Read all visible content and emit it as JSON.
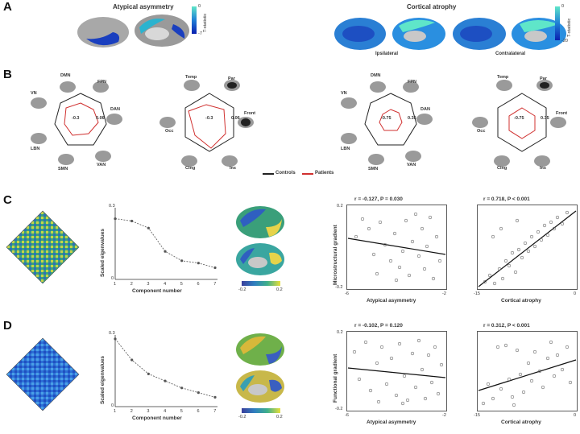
{
  "panels": {
    "a": "A",
    "b": "B",
    "c": "C",
    "d": "D"
  },
  "panelA": {
    "left_title": "Atypical asymmetry",
    "right_title": "Cortical atrophy",
    "left_cbar": {
      "label": "T-statistic",
      "max": "0",
      "min": "-7"
    },
    "right_cbar": {
      "label": "T-statistic",
      "max": "0",
      "min": "-20"
    },
    "ipsilateral": "Ipsilateral",
    "contralateral": "Contralateral"
  },
  "panelB": {
    "radar1": {
      "labels": [
        "DMN",
        "FPN",
        "DAN",
        "VAN",
        "SMN",
        "LBN",
        "VN"
      ],
      "min": "-0.3",
      "max": "0.06"
    },
    "radar2": {
      "labels": [
        "Temp",
        "Par",
        "Front",
        "Ins",
        "Cing",
        "Occ"
      ],
      "min": "-0.3",
      "max": "0.06"
    },
    "radar3": {
      "labels": [
        "DMN",
        "FPN",
        "DAN",
        "VAN",
        "SMN",
        "LBN",
        "VN"
      ],
      "min": "-0.75",
      "max": "0.35"
    },
    "radar4": {
      "labels": [
        "Temp",
        "Par",
        "Front",
        "Ins",
        "Cing",
        "Occ"
      ],
      "min": "-0.75",
      "max": "0.35"
    },
    "legend": {
      "controls": "Controls",
      "patients": "Patients",
      "controls_color": "#222222",
      "patients_color": "#d0302f"
    }
  },
  "panelC": {
    "ylabel": "Scaled eigenvalues",
    "xlabel": "Component number",
    "ymax": "0.3",
    "ymin": "0",
    "xticks": [
      "1",
      "2",
      "3",
      "4",
      "5",
      "6",
      "7"
    ],
    "cbar_min": "-0.2",
    "cbar_max": "0.2",
    "scatter1": {
      "title": "r = -0.127, P = 0.030",
      "xlabel": "Atypical asymmetry",
      "ylabel": "Microstructural gradient",
      "ymax": "0.2",
      "ymin": "-0.2",
      "xmin": "-6",
      "xmax": "-2"
    },
    "scatter2": {
      "title": "r = 0.718, P < 0.001",
      "xlabel": "Cortical atrophy",
      "xmin": "-15",
      "xmax": "0"
    }
  },
  "panelD": {
    "ylabel": "Scaled eigenvalues",
    "xlabel": "Component number",
    "ymax": "0.3",
    "ymin": "0",
    "xticks": [
      "1",
      "2",
      "3",
      "4",
      "5",
      "6",
      "7"
    ],
    "cbar_min": "-0.2",
    "cbar_max": "0.2",
    "scatter1": {
      "title": "r = -0.102, P = 0.120",
      "xlabel": "Atypical asymmetry",
      "ylabel": "Functional gradient",
      "ymax": "0.2",
      "ymin": "-0.2",
      "xmin": "-6",
      "xmax": "-2"
    },
    "scatter2": {
      "title": "r = 0.312, P < 0.001",
      "xlabel": "Cortical atrophy",
      "xmin": "-15",
      "xmax": "0"
    }
  },
  "chart_data": [
    {
      "type": "line",
      "x": [
        1,
        2,
        3,
        4,
        5,
        6,
        7
      ],
      "values": [
        0.26,
        0.25,
        0.22,
        0.12,
        0.08,
        0.07,
        0.05
      ],
      "xlabel": "Component number",
      "ylabel": "Scaled eigenvalues",
      "ylim": [
        0,
        0.3
      ]
    },
    {
      "type": "line",
      "x": [
        1,
        2,
        3,
        4,
        5,
        6,
        7
      ],
      "values": [
        0.29,
        0.2,
        0.14,
        0.11,
        0.08,
        0.06,
        0.04
      ],
      "xlabel": "Component number",
      "ylabel": "Scaled eigenvalues",
      "ylim": [
        0,
        0.3
      ]
    }
  ]
}
